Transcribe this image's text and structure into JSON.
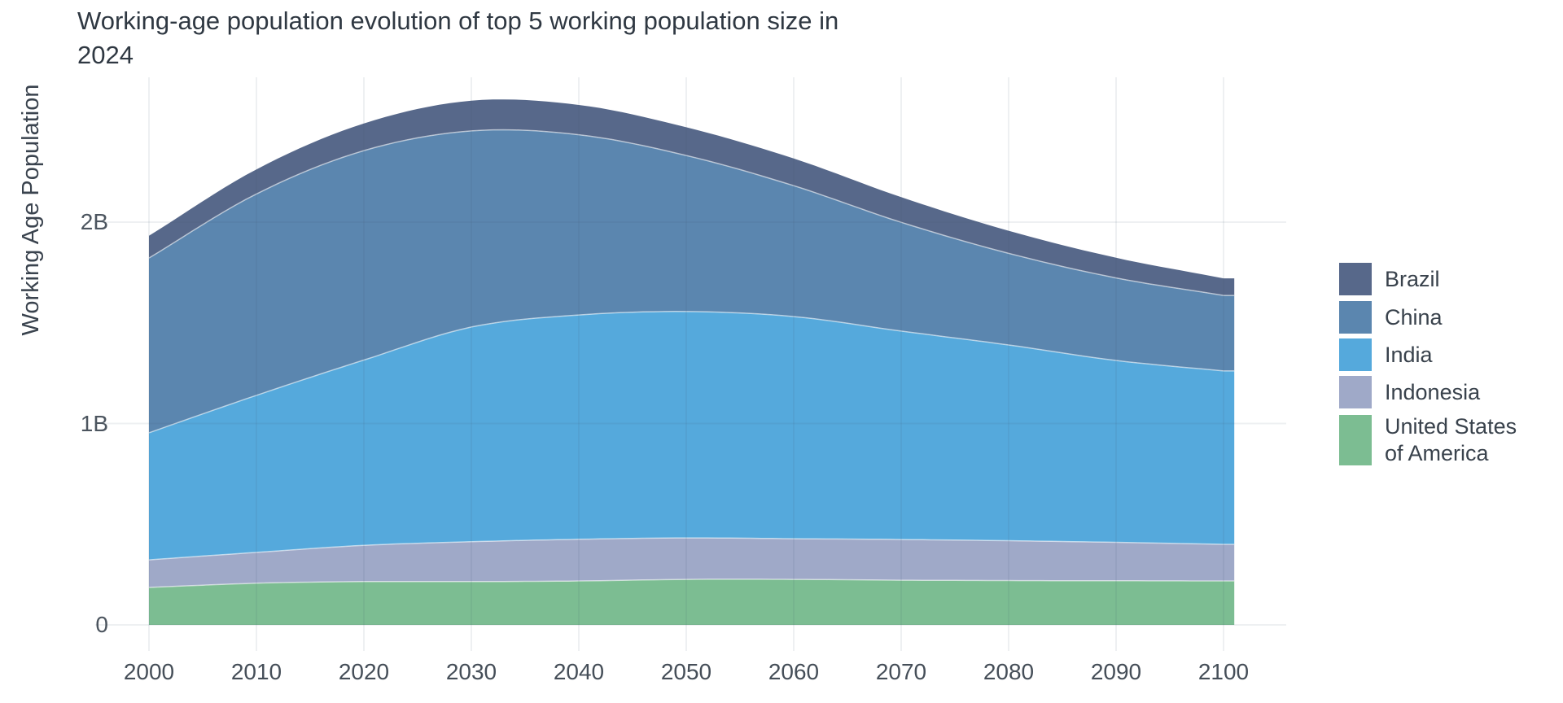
{
  "title": {
    "text": "Working-age population evolution of top 5 working population size in 2024",
    "line1": "Working-age population evolution of top 5 working population size in",
    "line2": "2024"
  },
  "y_axis": {
    "title": "Working Age Population",
    "tick_labels": [
      "0",
      "1B",
      "2B"
    ],
    "tick_values_millions": [
      0,
      1000,
      2000
    ]
  },
  "x_axis": {
    "tick_labels": [
      "2000",
      "2010",
      "2020",
      "2030",
      "2040",
      "2050",
      "2060",
      "2070",
      "2080",
      "2090",
      "2100"
    ],
    "tick_values": [
      2000,
      2010,
      2020,
      2030,
      2040,
      2050,
      2060,
      2070,
      2080,
      2090,
      2100
    ]
  },
  "legend": {
    "items": [
      {
        "label": "Brazil",
        "color": "#57688a"
      },
      {
        "label": "China",
        "color": "#5b86af"
      },
      {
        "label": "India",
        "color": "#55a9dc"
      },
      {
        "label": "Indonesia",
        "color": "#9fa9c8"
      },
      {
        "label": "United States\nof America",
        "color": "#7cbd92"
      }
    ]
  },
  "chart_data": {
    "type": "area",
    "stacked": true,
    "title": "Working-age population evolution of top 5 working population size in 2024",
    "xlabel": "",
    "ylabel": "Working Age Population",
    "unit": "millions of people",
    "x": [
      2000,
      2010,
      2020,
      2030,
      2040,
      2050,
      2060,
      2070,
      2080,
      2090,
      2100
    ],
    "ylim_millions": [
      0,
      2720
    ],
    "grid": {
      "horizontal_millions": [
        0,
        1000,
        2000
      ],
      "vertical_years": [
        2000,
        2010,
        2020,
        2030,
        2040,
        2050,
        2060,
        2070,
        2080,
        2090,
        2100
      ]
    },
    "legend_order_top_to_bottom": [
      "Brazil",
      "China",
      "India",
      "Indonesia",
      "United States of America"
    ],
    "series": [
      {
        "name": "United States of America",
        "color": "#7cbd92",
        "stack_position": "bottom",
        "values": [
          186,
          207,
          215,
          215,
          218,
          226,
          226,
          222,
          220,
          219,
          218
        ]
      },
      {
        "name": "Indonesia",
        "color": "#9fa9c8",
        "stack_position": "2nd from bottom",
        "values": [
          137,
          153,
          180,
          198,
          207,
          206,
          202,
          202,
          198,
          191,
          182
        ]
      },
      {
        "name": "India",
        "color": "#55a9dc",
        "stack_position": "middle",
        "values": [
          631,
          780,
          920,
          1066,
          1114,
          1124,
          1103,
          1035,
          972,
          903,
          861
        ]
      },
      {
        "name": "China",
        "color": "#5b86af",
        "stack_position": "4th from bottom",
        "values": [
          868,
          1000,
          1040,
          974,
          895,
          775,
          650,
          540,
          455,
          410,
          375
        ]
      },
      {
        "name": "Brazil",
        "color": "#57688a",
        "stack_position": "top",
        "values": [
          110,
          122,
          135,
          150,
          148,
          140,
          135,
          125,
          112,
          100,
          85
        ]
      }
    ]
  }
}
